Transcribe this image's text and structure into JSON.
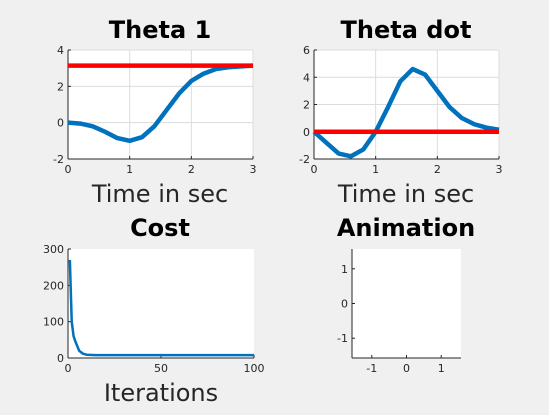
{
  "window": {
    "background": "#f0f0f0"
  },
  "colors": {
    "blue": "#0072bd",
    "red": "#ff0000",
    "axis": "#262626",
    "grid": "#dcdcdc"
  },
  "chart_data": [
    {
      "id": "theta1",
      "type": "line",
      "title": "Theta 1",
      "xlabel": "Time in sec",
      "ylabel": "",
      "xlim": [
        0,
        3
      ],
      "ylim": [
        -2,
        4
      ],
      "xticks": [
        0,
        1,
        2,
        3
      ],
      "yticks": [
        -2,
        0,
        2,
        4
      ],
      "grid": true,
      "series": [
        {
          "color": "#0072bd",
          "x": [
            0,
            0.2,
            0.4,
            0.6,
            0.8,
            1.0,
            1.2,
            1.4,
            1.6,
            1.8,
            2.0,
            2.2,
            2.4,
            2.6,
            2.8,
            3.0
          ],
          "y": [
            0.0,
            -0.05,
            -0.2,
            -0.5,
            -0.85,
            -1.0,
            -0.8,
            -0.2,
            0.7,
            1.6,
            2.3,
            2.7,
            2.95,
            3.05,
            3.1,
            3.14
          ]
        },
        {
          "color": "#ff0000",
          "x": [
            0,
            3
          ],
          "y": [
            3.14,
            3.14
          ]
        }
      ]
    },
    {
      "id": "thetadot",
      "type": "line",
      "title": "Theta dot",
      "xlabel": "Time in sec",
      "ylabel": "",
      "xlim": [
        0,
        3
      ],
      "ylim": [
        -2,
        6
      ],
      "xticks": [
        0,
        1,
        2,
        3
      ],
      "yticks": [
        -2,
        0,
        2,
        4,
        6
      ],
      "grid": true,
      "series": [
        {
          "color": "#0072bd",
          "x": [
            0,
            0.2,
            0.4,
            0.6,
            0.8,
            1.0,
            1.2,
            1.4,
            1.6,
            1.8,
            2.0,
            2.2,
            2.4,
            2.6,
            2.8,
            3.0
          ],
          "y": [
            0.0,
            -0.8,
            -1.6,
            -1.8,
            -1.3,
            0.0,
            1.8,
            3.7,
            4.6,
            4.2,
            3.0,
            1.8,
            1.0,
            0.55,
            0.3,
            0.15
          ]
        },
        {
          "color": "#ff0000",
          "x": [
            0,
            3
          ],
          "y": [
            0,
            0
          ]
        }
      ]
    },
    {
      "id": "cost",
      "type": "line",
      "title": "Cost",
      "xlabel": "Iterations",
      "ylabel": "",
      "xlim": [
        0,
        100
      ],
      "ylim": [
        0,
        300
      ],
      "xticks": [
        0,
        50,
        100
      ],
      "yticks": [
        0,
        100,
        200,
        300
      ],
      "grid": false,
      "series": [
        {
          "color": "#0072bd",
          "x": [
            1,
            2,
            3,
            4,
            6,
            8,
            10,
            15,
            20,
            30,
            50,
            75,
            100
          ],
          "y": [
            270,
            100,
            60,
            45,
            20,
            12,
            9,
            8,
            8,
            8,
            8,
            8,
            8
          ]
        }
      ]
    },
    {
      "id": "animation",
      "type": "line",
      "title": "Animation",
      "xlabel": "",
      "ylabel": "",
      "xlim": [
        -1.57,
        1.57
      ],
      "ylim": [
        -1.57,
        1.57
      ],
      "xticks": [
        -1,
        0,
        1
      ],
      "yticks": [
        -1,
        0,
        1
      ],
      "grid": false,
      "series": []
    }
  ]
}
